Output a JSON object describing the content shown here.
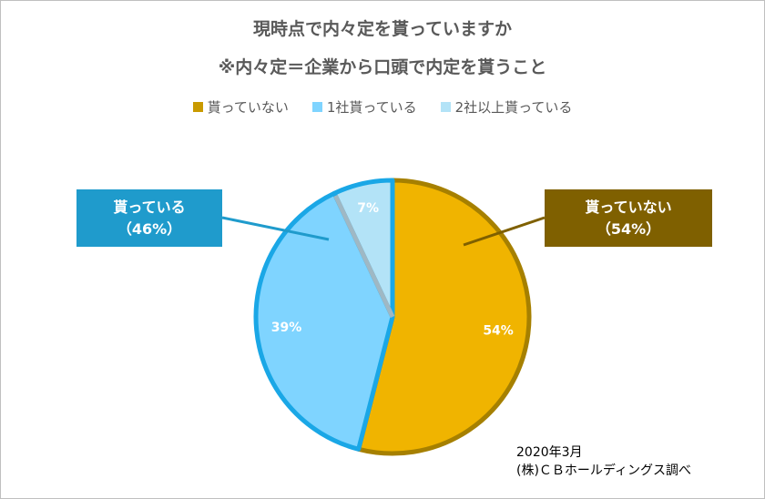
{
  "title_line1": "現時点で内々定を貰っていますか",
  "title_line2": "※内々定＝企業から口頭で内定を貰うこと",
  "chart_data": {
    "type": "pie",
    "title": "現時点で内々定を貰っていますか",
    "subtitle": "※内々定＝企業から口頭で内定を貰うこと",
    "categories": [
      "貰っていない",
      "1社貰っている",
      "2社以上貰っている"
    ],
    "values": [
      54,
      39,
      7
    ],
    "data_labels": [
      "54%",
      "39%",
      "7%"
    ],
    "colors": [
      "#f0b400",
      "#7fd4ff",
      "#b3e3f7"
    ],
    "border_colors": [
      "#a68000",
      "#1aa7e6",
      "#1aa7e6"
    ],
    "legend_position": "top"
  },
  "callouts": {
    "left_label": "貰っている",
    "left_pct": "（46%）",
    "right_label": "貰っていない",
    "right_pct": "（54%）",
    "left_color": "#1f9bcc",
    "right_color": "#7f6000"
  },
  "source": {
    "date": "2020年3月",
    "org": "(株)ＣＢホールディングス調べ"
  }
}
